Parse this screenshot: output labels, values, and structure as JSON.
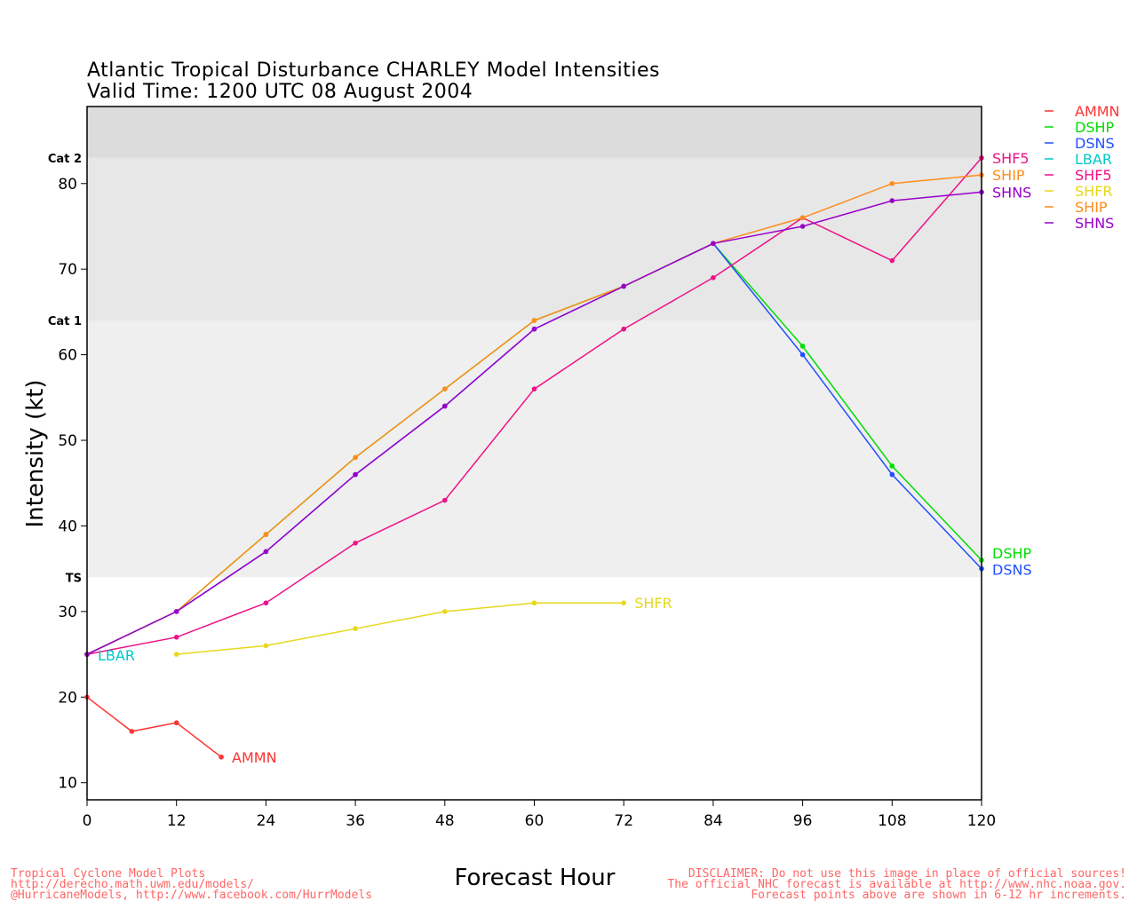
{
  "chart_data": {
    "type": "line",
    "title": "Atlantic Tropical Disturbance CHARLEY Model Intensities",
    "subtitle": "Valid Time: 1200 UTC 08 August 2004",
    "xlabel": "Forecast Hour",
    "ylabel": "Intensity (kt)",
    "xlim": [
      0,
      120
    ],
    "ylim": [
      8,
      89
    ],
    "x_ticks": [
      0,
      12,
      24,
      36,
      48,
      60,
      72,
      84,
      96,
      108,
      120
    ],
    "y_ticks": [
      10,
      20,
      30,
      40,
      50,
      60,
      70,
      80
    ],
    "bands": [
      {
        "label": "TS",
        "from": 34,
        "to": 64,
        "color": "#efefef"
      },
      {
        "label": "Cat 1",
        "from": 64,
        "to": 83,
        "color": "#e7e7e7"
      },
      {
        "label": "Cat 2",
        "from": 83,
        "to": 89,
        "color": "#dcdcdc"
      }
    ],
    "legend_position": "right",
    "series": [
      {
        "name": "AMMN",
        "color": "#ff3333",
        "x": [
          0,
          6,
          12,
          18
        ],
        "values": [
          20,
          16,
          17,
          13
        ]
      },
      {
        "name": "DSHP",
        "color": "#00dd00",
        "x": [
          0,
          12,
          24,
          36,
          48,
          60,
          72,
          84,
          96,
          108,
          120
        ],
        "values": [
          25,
          30,
          39,
          48,
          56,
          64,
          68,
          73,
          61,
          47,
          36
        ]
      },
      {
        "name": "DSNS",
        "color": "#1f4fff",
        "x": [
          0,
          12,
          24,
          36,
          48,
          60,
          72,
          84,
          96,
          108,
          120
        ],
        "values": [
          25,
          30,
          37,
          46,
          54,
          63,
          68,
          73,
          60,
          46,
          35
        ]
      },
      {
        "name": "LBAR",
        "color": "#00c8c8",
        "x": [
          0
        ],
        "values": [
          25
        ]
      },
      {
        "name": "SHF5",
        "color": "#ee1188",
        "x": [
          0,
          12,
          24,
          36,
          48,
          60,
          72,
          84,
          96,
          108,
          120
        ],
        "values": [
          25,
          27,
          31,
          38,
          43,
          56,
          63,
          69,
          76,
          71,
          83
        ]
      },
      {
        "name": "SHFR",
        "color": "#e6d81a",
        "x": [
          12,
          24,
          36,
          48,
          60,
          72
        ],
        "values": [
          25,
          26,
          28,
          30,
          31,
          31
        ]
      },
      {
        "name": "SHIP",
        "color": "#ff8c1a",
        "x": [
          0,
          12,
          24,
          36,
          48,
          60,
          72,
          84,
          96,
          108,
          120
        ],
        "values": [
          25,
          30,
          39,
          48,
          56,
          64,
          68,
          73,
          76,
          80,
          81
        ]
      },
      {
        "name": "SHNS",
        "color": "#9900cc",
        "x": [
          0,
          12,
          24,
          36,
          48,
          60,
          72,
          84,
          96,
          108,
          120
        ],
        "values": [
          25,
          30,
          37,
          46,
          54,
          63,
          68,
          73,
          75,
          78,
          79
        ]
      }
    ]
  },
  "footer": {
    "left_lines": [
      "Tropical Cyclone Model Plots",
      "http://derecho.math.uwm.edu/models/",
      "@HurricaneModels, http://www.facebook.com/HurrModels"
    ],
    "right_lines": [
      "DISCLAIMER: Do not use this image in place of official sources!",
      "The official NHC forecast is available at http://www.nhc.noaa.gov.",
      "Forecast points above are shown in 6-12 hr increments."
    ]
  }
}
